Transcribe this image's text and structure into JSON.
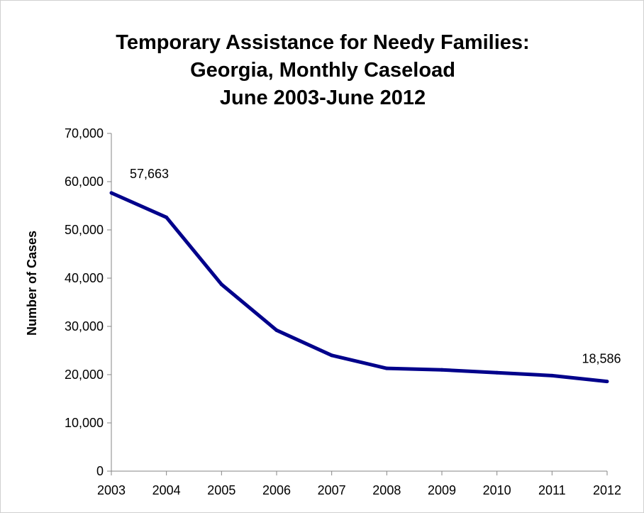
{
  "chart_data": {
    "type": "line",
    "title": [
      "Temporary Assistance for Needy Families:",
      "Georgia, Monthly Caseload",
      "June 2003-June 2012"
    ],
    "xlabel": "",
    "ylabel": "Number of Cases",
    "x": [
      "2003",
      "2004",
      "2005",
      "2006",
      "2007",
      "2008",
      "2009",
      "2010",
      "2011",
      "2012"
    ],
    "series": [
      {
        "values": [
          57663,
          52600,
          38700,
          29200,
          24000,
          21300,
          21000,
          20400,
          19800,
          18586
        ],
        "color": "#00008b"
      }
    ],
    "ylim": [
      0,
      70000
    ],
    "yticks": [
      "0",
      "10,000",
      "20,000",
      "30,000",
      "40,000",
      "50,000",
      "60,000",
      "70,000"
    ],
    "data_labels": [
      {
        "index": 0,
        "text": "57,663"
      },
      {
        "index": 9,
        "text": "18,586"
      }
    ],
    "grid": false,
    "legend": "none"
  }
}
